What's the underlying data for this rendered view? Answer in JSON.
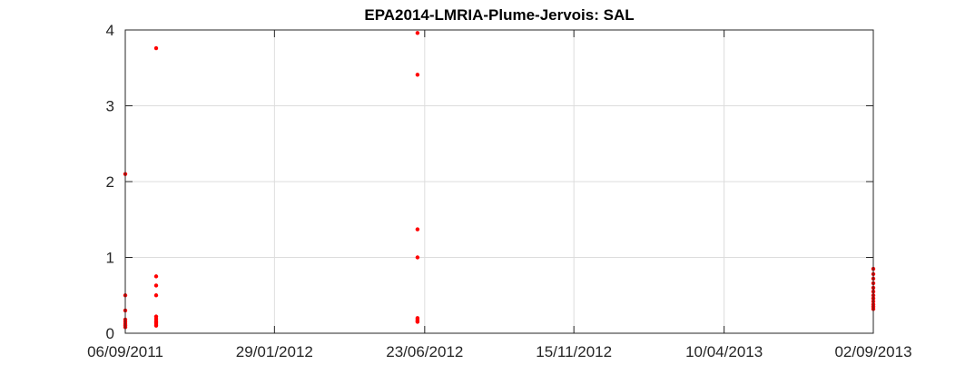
{
  "chart_data": {
    "type": "scatter",
    "title": "EPA2014-LMRIA-Plume-Jervois: SAL",
    "xlabel": "",
    "ylabel": "",
    "x_axis_type": "date",
    "xlim": [
      "2011-09-06",
      "2013-09-02"
    ],
    "ylim": [
      0,
      4
    ],
    "x_ticks": [
      {
        "date": "2011-09-06",
        "label": "06/09/2011"
      },
      {
        "date": "2012-01-29",
        "label": "29/01/2012"
      },
      {
        "date": "2012-06-23",
        "label": "23/06/2012"
      },
      {
        "date": "2012-11-15",
        "label": "15/11/2012"
      },
      {
        "date": "2013-04-10",
        "label": "10/04/2013"
      },
      {
        "date": "2013-09-02",
        "label": "02/09/2013"
      }
    ],
    "y_ticks": [
      0,
      1,
      2,
      3,
      4
    ],
    "grid": true,
    "marker_color": "#ff0000",
    "series": [
      {
        "points": [
          {
            "x": "2011-09-06",
            "y": 2.1
          },
          {
            "x": "2011-09-06",
            "y": 0.5
          },
          {
            "x": "2011-09-06",
            "y": 0.3
          },
          {
            "x": "2011-09-06",
            "y": 0.18
          },
          {
            "x": "2011-09-06",
            "y": 0.15
          },
          {
            "x": "2011-09-06",
            "y": 0.12
          },
          {
            "x": "2011-09-06",
            "y": 0.1
          },
          {
            "x": "2011-09-06",
            "y": 0.08
          },
          {
            "x": "2011-10-06",
            "y": 3.76
          },
          {
            "x": "2011-10-06",
            "y": 0.75
          },
          {
            "x": "2011-10-06",
            "y": 0.63
          },
          {
            "x": "2011-10-06",
            "y": 0.5
          },
          {
            "x": "2011-10-06",
            "y": 0.22
          },
          {
            "x": "2011-10-06",
            "y": 0.19
          },
          {
            "x": "2011-10-06",
            "y": 0.16
          },
          {
            "x": "2011-10-06",
            "y": 0.14
          },
          {
            "x": "2011-10-06",
            "y": 0.12
          },
          {
            "x": "2011-10-06",
            "y": 0.1
          },
          {
            "x": "2012-06-16",
            "y": 3.96
          },
          {
            "x": "2012-06-16",
            "y": 3.41
          },
          {
            "x": "2012-06-16",
            "y": 1.37
          },
          {
            "x": "2012-06-16",
            "y": 1.0
          },
          {
            "x": "2012-06-16",
            "y": 0.2
          },
          {
            "x": "2012-06-16",
            "y": 0.18
          },
          {
            "x": "2012-06-16",
            "y": 0.16
          },
          {
            "x": "2012-06-16",
            "y": 0.15
          },
          {
            "x": "2013-09-02",
            "y": 0.85
          },
          {
            "x": "2013-09-02",
            "y": 0.78
          },
          {
            "x": "2013-09-02",
            "y": 0.72
          },
          {
            "x": "2013-09-02",
            "y": 0.66
          },
          {
            "x": "2013-09-02",
            "y": 0.6
          },
          {
            "x": "2013-09-02",
            "y": 0.55
          },
          {
            "x": "2013-09-02",
            "y": 0.5
          },
          {
            "x": "2013-09-02",
            "y": 0.46
          },
          {
            "x": "2013-09-02",
            "y": 0.42
          },
          {
            "x": "2013-09-02",
            "y": 0.38
          },
          {
            "x": "2013-09-02",
            "y": 0.35
          },
          {
            "x": "2013-09-02",
            "y": 0.32
          }
        ]
      }
    ]
  }
}
